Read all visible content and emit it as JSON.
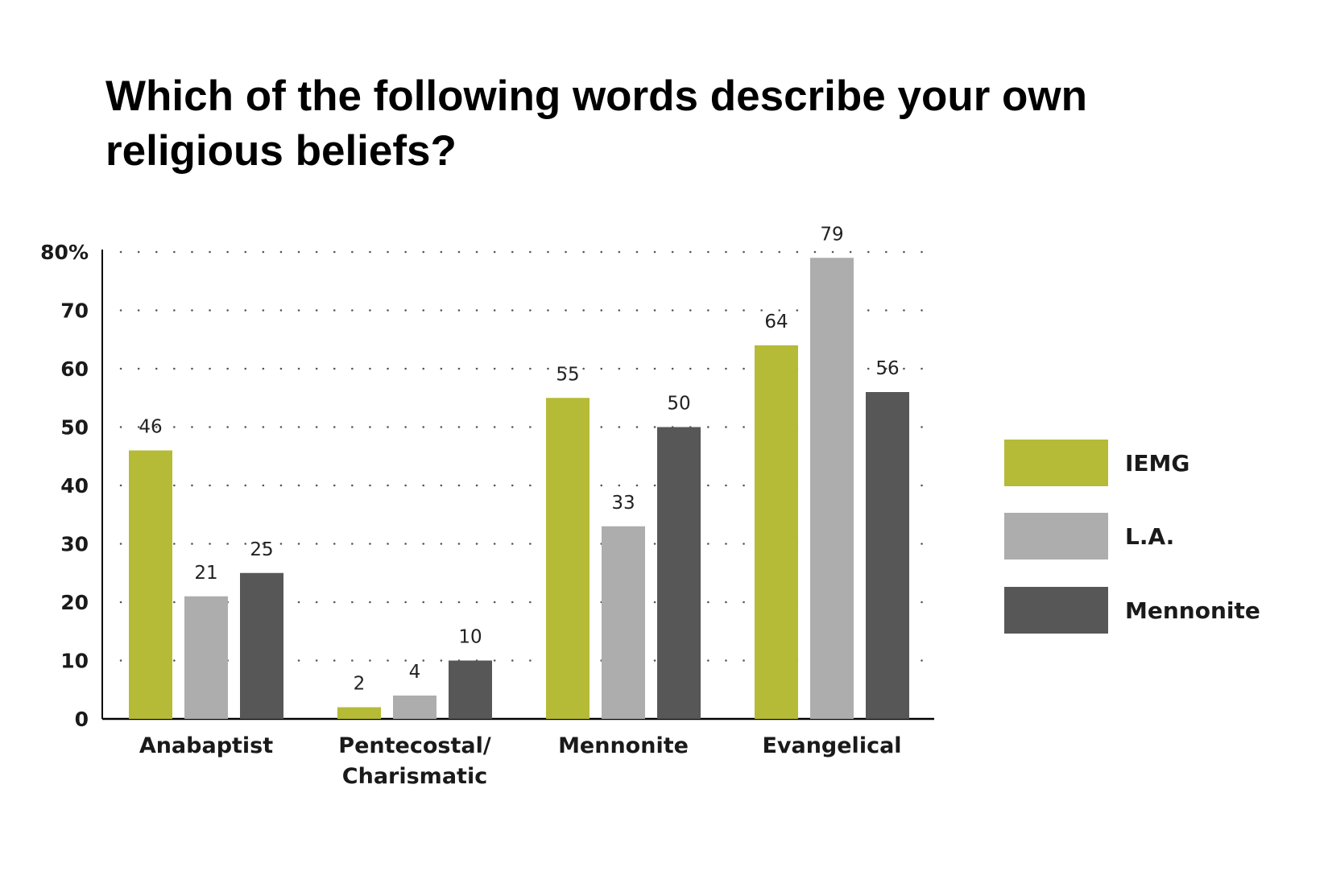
{
  "chart_data": {
    "type": "bar",
    "title": "Which of the following words describe your own religious beliefs?",
    "categories": [
      [
        "Anabaptist"
      ],
      [
        "Pentecostal/",
        "Charismatic"
      ],
      [
        "Mennonite"
      ],
      [
        "Evangelical"
      ]
    ],
    "series": [
      {
        "name": "IEMG",
        "color": "#b5bb36",
        "values": [
          46,
          2,
          55,
          64
        ]
      },
      {
        "name": "L.A.",
        "color": "#adadad",
        "values": [
          21,
          4,
          33,
          79
        ]
      },
      {
        "name": "Mennonite",
        "color": "#575757",
        "values": [
          25,
          10,
          50,
          56
        ]
      }
    ],
    "yticks": [
      "0",
      "10",
      "20",
      "30",
      "40",
      "50",
      "60",
      "70",
      "80%"
    ],
    "ylim": [
      0,
      80
    ],
    "xlabel": "",
    "ylabel": "",
    "grid": true,
    "grid_style": "dotted",
    "legend_position": "right"
  }
}
